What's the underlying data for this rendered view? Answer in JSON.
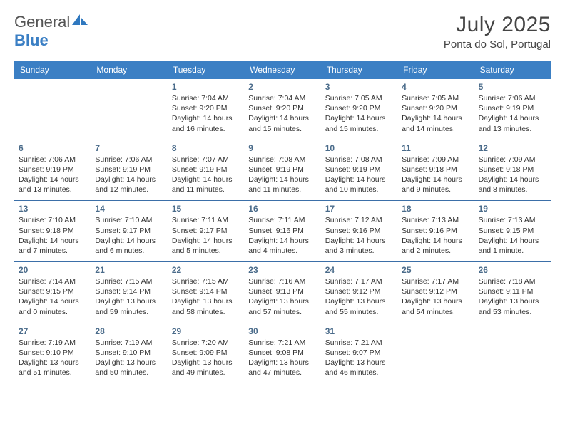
{
  "brand": {
    "word1": "General",
    "word2": "Blue",
    "logo_fill": "#2f78bf"
  },
  "title": "July 2025",
  "location": "Ponta do Sol, Portugal",
  "colors": {
    "header_bg": "#3b7fc4",
    "week_divider": "#3b6fa8",
    "daynum": "#4a6b8a",
    "text": "#333333",
    "bg": "#ffffff"
  },
  "weekdays": [
    "Sunday",
    "Monday",
    "Tuesday",
    "Wednesday",
    "Thursday",
    "Friday",
    "Saturday"
  ],
  "days": [
    {
      "n": "",
      "sr": "",
      "ss": "",
      "h": "",
      "m": "",
      "empty": true
    },
    {
      "n": "",
      "sr": "",
      "ss": "",
      "h": "",
      "m": "",
      "empty": true
    },
    {
      "n": "1",
      "sr": "7:04 AM",
      "ss": "9:20 PM",
      "h": "14",
      "m": "16"
    },
    {
      "n": "2",
      "sr": "7:04 AM",
      "ss": "9:20 PM",
      "h": "14",
      "m": "15"
    },
    {
      "n": "3",
      "sr": "7:05 AM",
      "ss": "9:20 PM",
      "h": "14",
      "m": "15"
    },
    {
      "n": "4",
      "sr": "7:05 AM",
      "ss": "9:20 PM",
      "h": "14",
      "m": "14"
    },
    {
      "n": "5",
      "sr": "7:06 AM",
      "ss": "9:19 PM",
      "h": "14",
      "m": "13"
    },
    {
      "n": "6",
      "sr": "7:06 AM",
      "ss": "9:19 PM",
      "h": "14",
      "m": "13"
    },
    {
      "n": "7",
      "sr": "7:06 AM",
      "ss": "9:19 PM",
      "h": "14",
      "m": "12"
    },
    {
      "n": "8",
      "sr": "7:07 AM",
      "ss": "9:19 PM",
      "h": "14",
      "m": "11"
    },
    {
      "n": "9",
      "sr": "7:08 AM",
      "ss": "9:19 PM",
      "h": "14",
      "m": "11"
    },
    {
      "n": "10",
      "sr": "7:08 AM",
      "ss": "9:19 PM",
      "h": "14",
      "m": "10"
    },
    {
      "n": "11",
      "sr": "7:09 AM",
      "ss": "9:18 PM",
      "h": "14",
      "m": "9"
    },
    {
      "n": "12",
      "sr": "7:09 AM",
      "ss": "9:18 PM",
      "h": "14",
      "m": "8"
    },
    {
      "n": "13",
      "sr": "7:10 AM",
      "ss": "9:18 PM",
      "h": "14",
      "m": "7"
    },
    {
      "n": "14",
      "sr": "7:10 AM",
      "ss": "9:17 PM",
      "h": "14",
      "m": "6"
    },
    {
      "n": "15",
      "sr": "7:11 AM",
      "ss": "9:17 PM",
      "h": "14",
      "m": "5"
    },
    {
      "n": "16",
      "sr": "7:11 AM",
      "ss": "9:16 PM",
      "h": "14",
      "m": "4"
    },
    {
      "n": "17",
      "sr": "7:12 AM",
      "ss": "9:16 PM",
      "h": "14",
      "m": "3"
    },
    {
      "n": "18",
      "sr": "7:13 AM",
      "ss": "9:16 PM",
      "h": "14",
      "m": "2"
    },
    {
      "n": "19",
      "sr": "7:13 AM",
      "ss": "9:15 PM",
      "h": "14",
      "m": "1",
      "singular": true
    },
    {
      "n": "20",
      "sr": "7:14 AM",
      "ss": "9:15 PM",
      "h": "14",
      "m": "0"
    },
    {
      "n": "21",
      "sr": "7:15 AM",
      "ss": "9:14 PM",
      "h": "13",
      "m": "59"
    },
    {
      "n": "22",
      "sr": "7:15 AM",
      "ss": "9:14 PM",
      "h": "13",
      "m": "58"
    },
    {
      "n": "23",
      "sr": "7:16 AM",
      "ss": "9:13 PM",
      "h": "13",
      "m": "57"
    },
    {
      "n": "24",
      "sr": "7:17 AM",
      "ss": "9:12 PM",
      "h": "13",
      "m": "55"
    },
    {
      "n": "25",
      "sr": "7:17 AM",
      "ss": "9:12 PM",
      "h": "13",
      "m": "54"
    },
    {
      "n": "26",
      "sr": "7:18 AM",
      "ss": "9:11 PM",
      "h": "13",
      "m": "53"
    },
    {
      "n": "27",
      "sr": "7:19 AM",
      "ss": "9:10 PM",
      "h": "13",
      "m": "51"
    },
    {
      "n": "28",
      "sr": "7:19 AM",
      "ss": "9:10 PM",
      "h": "13",
      "m": "50"
    },
    {
      "n": "29",
      "sr": "7:20 AM",
      "ss": "9:09 PM",
      "h": "13",
      "m": "49"
    },
    {
      "n": "30",
      "sr": "7:21 AM",
      "ss": "9:08 PM",
      "h": "13",
      "m": "47"
    },
    {
      "n": "31",
      "sr": "7:21 AM",
      "ss": "9:07 PM",
      "h": "13",
      "m": "46"
    },
    {
      "n": "",
      "sr": "",
      "ss": "",
      "h": "",
      "m": "",
      "empty": true
    },
    {
      "n": "",
      "sr": "",
      "ss": "",
      "h": "",
      "m": "",
      "empty": true
    }
  ],
  "labels": {
    "sunrise": "Sunrise:",
    "sunset": "Sunset:",
    "daylight": "Daylight:",
    "hours": "hours",
    "and": "and",
    "minutes": "minutes.",
    "minute": "minute."
  }
}
